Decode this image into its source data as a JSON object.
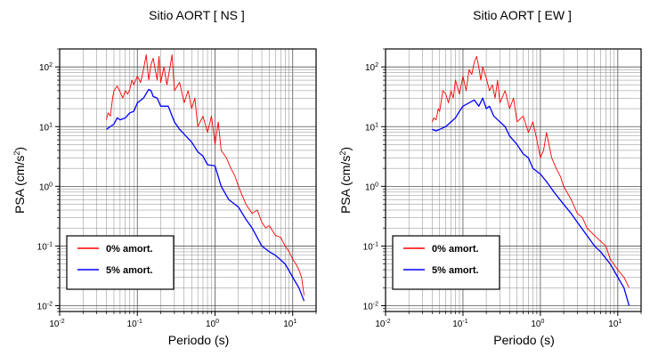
{
  "chart_data": [
    {
      "type": "line",
      "title": "Sitio AORT [ NS ]",
      "xlabel": "Periodo (s)",
      "ylabel": "PSA (cm/s2)",
      "xscale": "log",
      "yscale": "log",
      "xlim": [
        0.01,
        20
      ],
      "ylim": [
        0.008,
        200
      ],
      "xticks": [
        {
          "base": "10",
          "exp": "-2"
        },
        {
          "base": "10",
          "exp": "-1"
        },
        {
          "base": "10",
          "exp": "0"
        },
        {
          "base": "10",
          "exp": "1"
        }
      ],
      "yticks": [
        {
          "base": "10",
          "exp": "-2"
        },
        {
          "base": "10",
          "exp": "-1"
        },
        {
          "base": "10",
          "exp": "0"
        },
        {
          "base": "10",
          "exp": "1"
        },
        {
          "base": "10",
          "exp": "2"
        }
      ],
      "grid": true,
      "legend_position": "bottom-left",
      "series": [
        {
          "name": "0% amort.",
          "color": "#ff0000",
          "x": [
            0.04,
            0.042,
            0.045,
            0.048,
            0.05,
            0.055,
            0.06,
            0.065,
            0.07,
            0.075,
            0.08,
            0.085,
            0.09,
            0.1,
            0.11,
            0.12,
            0.13,
            0.14,
            0.15,
            0.16,
            0.17,
            0.18,
            0.19,
            0.2,
            0.22,
            0.24,
            0.26,
            0.28,
            0.3,
            0.35,
            0.4,
            0.45,
            0.5,
            0.55,
            0.6,
            0.7,
            0.8,
            0.9,
            1.0,
            1.1,
            1.2,
            1.4,
            1.6,
            1.8,
            2.0,
            2.5,
            3.0,
            3.5,
            4.0,
            4.5,
            5.0,
            6.0,
            7.0,
            8.0,
            9.0,
            10,
            11,
            12,
            13,
            14
          ],
          "y": [
            13,
            17,
            15,
            30,
            40,
            48,
            38,
            30,
            40,
            35,
            42,
            60,
            50,
            70,
            55,
            90,
            160,
            60,
            110,
            140,
            90,
            60,
            150,
            55,
            100,
            50,
            90,
            160,
            40,
            55,
            25,
            40,
            20,
            30,
            10,
            15,
            8,
            15,
            5,
            12,
            4,
            3,
            2.0,
            1.5,
            1.0,
            0.5,
            0.35,
            0.4,
            0.25,
            0.2,
            0.22,
            0.15,
            0.14,
            0.1,
            0.08,
            0.06,
            0.05,
            0.04,
            0.03,
            0.015
          ]
        },
        {
          "name": "5% amort.",
          "color": "#0000ff",
          "x": [
            0.04,
            0.045,
            0.05,
            0.055,
            0.06,
            0.07,
            0.08,
            0.09,
            0.1,
            0.12,
            0.14,
            0.15,
            0.16,
            0.18,
            0.2,
            0.25,
            0.3,
            0.35,
            0.4,
            0.5,
            0.6,
            0.7,
            0.8,
            1.0,
            1.2,
            1.5,
            2.0,
            2.5,
            3.0,
            4.0,
            5.0,
            6.0,
            8.0,
            10,
            12,
            14
          ],
          "y": [
            9,
            10,
            11,
            14,
            13,
            14,
            17,
            18,
            25,
            30,
            42,
            40,
            32,
            30,
            22,
            22,
            12,
            9,
            7.5,
            5.5,
            3.8,
            3.2,
            2.3,
            2.2,
            1.0,
            0.6,
            0.45,
            0.28,
            0.2,
            0.1,
            0.08,
            0.07,
            0.05,
            0.03,
            0.02,
            0.012
          ]
        }
      ]
    },
    {
      "type": "line",
      "title": "Sitio AORT [ EW ]",
      "xlabel": "Periodo (s)",
      "ylabel": "PSA (cm/s2)",
      "xscale": "log",
      "yscale": "log",
      "xlim": [
        0.01,
        20
      ],
      "ylim": [
        0.008,
        200
      ],
      "xticks": [
        {
          "base": "10",
          "exp": "-2"
        },
        {
          "base": "10",
          "exp": "-1"
        },
        {
          "base": "10",
          "exp": "0"
        },
        {
          "base": "10",
          "exp": "1"
        }
      ],
      "yticks": [
        {
          "base": "10",
          "exp": "-2"
        },
        {
          "base": "10",
          "exp": "-1"
        },
        {
          "base": "10",
          "exp": "0"
        },
        {
          "base": "10",
          "exp": "1"
        },
        {
          "base": "10",
          "exp": "2"
        }
      ],
      "grid": true,
      "legend_position": "bottom-left",
      "series": [
        {
          "name": "0% amort.",
          "color": "#ff0000",
          "x": [
            0.04,
            0.042,
            0.045,
            0.048,
            0.05,
            0.055,
            0.06,
            0.065,
            0.07,
            0.075,
            0.08,
            0.09,
            0.1,
            0.11,
            0.12,
            0.13,
            0.14,
            0.15,
            0.16,
            0.17,
            0.18,
            0.2,
            0.22,
            0.24,
            0.26,
            0.28,
            0.3,
            0.35,
            0.4,
            0.45,
            0.5,
            0.6,
            0.7,
            0.8,
            0.9,
            1.0,
            1.1,
            1.2,
            1.4,
            1.6,
            1.8,
            2.0,
            2.5,
            3.0,
            3.5,
            4.0,
            5.0,
            6.0,
            7.0,
            8.0,
            10,
            12,
            14
          ],
          "y": [
            12,
            14,
            13,
            20,
            18,
            40,
            35,
            25,
            40,
            30,
            60,
            35,
            70,
            40,
            90,
            75,
            120,
            150,
            100,
            60,
            100,
            65,
            40,
            50,
            30,
            60,
            25,
            40,
            20,
            30,
            12,
            15,
            8,
            12,
            6,
            3,
            4,
            8,
            3,
            2,
            1.5,
            1.0,
            0.6,
            0.35,
            0.3,
            0.2,
            0.15,
            0.12,
            0.1,
            0.06,
            0.04,
            0.03,
            0.02
          ]
        },
        {
          "name": "5% amort.",
          "color": "#0000ff",
          "x": [
            0.04,
            0.045,
            0.05,
            0.06,
            0.07,
            0.08,
            0.09,
            0.1,
            0.12,
            0.14,
            0.16,
            0.18,
            0.2,
            0.22,
            0.25,
            0.3,
            0.35,
            0.4,
            0.5,
            0.6,
            0.7,
            0.8,
            1.0,
            1.2,
            1.5,
            2.0,
            2.5,
            3.0,
            4.0,
            5.0,
            6.0,
            8.0,
            10,
            12,
            14
          ],
          "y": [
            9,
            8.5,
            9,
            10,
            12,
            14,
            18,
            22,
            25,
            28,
            22,
            30,
            20,
            22,
            15,
            12,
            10,
            7,
            5,
            3.5,
            3,
            2,
            1.6,
            1.2,
            0.8,
            0.5,
            0.35,
            0.25,
            0.15,
            0.1,
            0.08,
            0.05,
            0.03,
            0.02,
            0.01
          ]
        }
      ]
    }
  ]
}
